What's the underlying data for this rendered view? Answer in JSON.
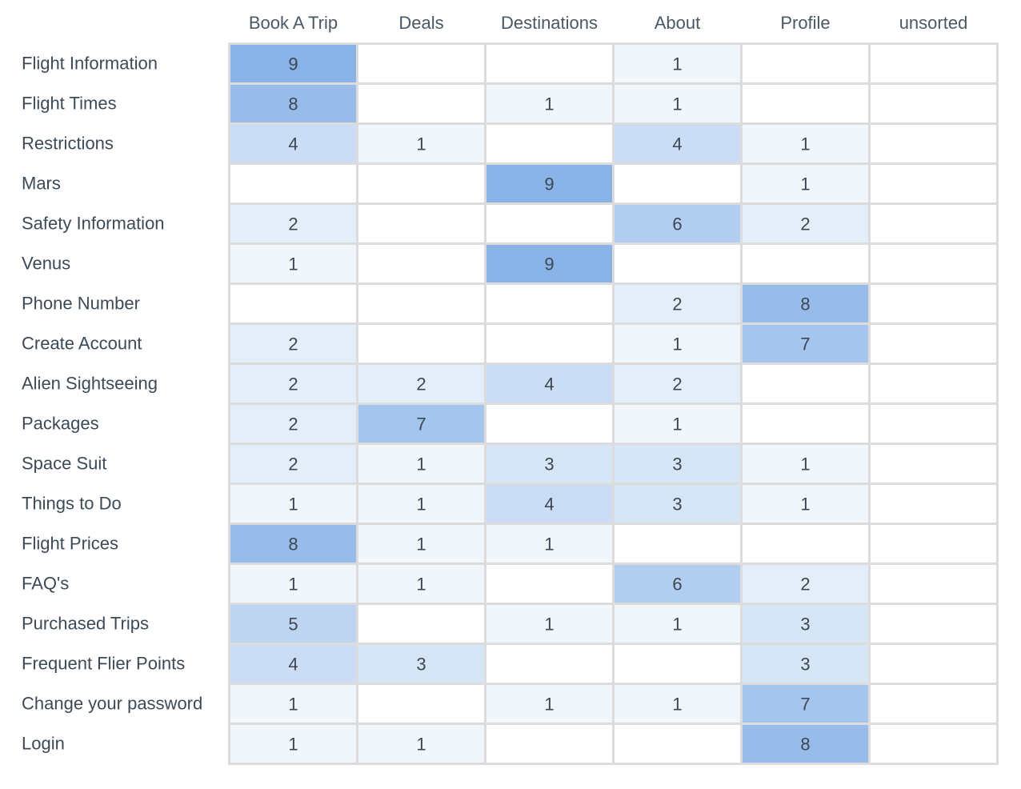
{
  "chart_data": {
    "type": "heatmap",
    "columns": [
      "Book A Trip",
      "Deals",
      "Destinations",
      "About",
      "Profile",
      "unsorted"
    ],
    "rows": [
      "Flight Information",
      "Flight Times",
      "Restrictions",
      "Mars",
      "Safety Information",
      "Venus",
      "Phone Number",
      "Create Account",
      "Alien Sightseeing",
      "Packages",
      "Space Suit",
      "Things to Do",
      "Flight Prices",
      "FAQ's",
      "Purchased Trips",
      "Frequent Flier Points",
      "Change your password",
      "Login"
    ],
    "values": [
      [
        9,
        null,
        null,
        1,
        null,
        null
      ],
      [
        8,
        null,
        1,
        1,
        null,
        null
      ],
      [
        4,
        1,
        null,
        4,
        1,
        null
      ],
      [
        null,
        null,
        9,
        null,
        1,
        null
      ],
      [
        2,
        null,
        null,
        6,
        2,
        null
      ],
      [
        1,
        null,
        9,
        null,
        null,
        null
      ],
      [
        null,
        null,
        null,
        2,
        8,
        null
      ],
      [
        2,
        null,
        null,
        1,
        7,
        null
      ],
      [
        2,
        2,
        4,
        2,
        null,
        null
      ],
      [
        2,
        7,
        null,
        1,
        null,
        null
      ],
      [
        2,
        1,
        3,
        3,
        1,
        null
      ],
      [
        1,
        1,
        4,
        3,
        1,
        null
      ],
      [
        8,
        1,
        1,
        null,
        null,
        null
      ],
      [
        1,
        1,
        null,
        6,
        2,
        null
      ],
      [
        5,
        null,
        1,
        1,
        3,
        null
      ],
      [
        4,
        3,
        null,
        null,
        3,
        null
      ],
      [
        1,
        null,
        1,
        1,
        7,
        null
      ],
      [
        1,
        1,
        null,
        null,
        8,
        null
      ]
    ],
    "max_value": 9,
    "colors": {
      "scale_low": "#f1f6fb",
      "scale_high": "#8ab4e8",
      "empty": "#ffffff",
      "grid": "#dcdcdc",
      "text": "#3d4752"
    }
  }
}
